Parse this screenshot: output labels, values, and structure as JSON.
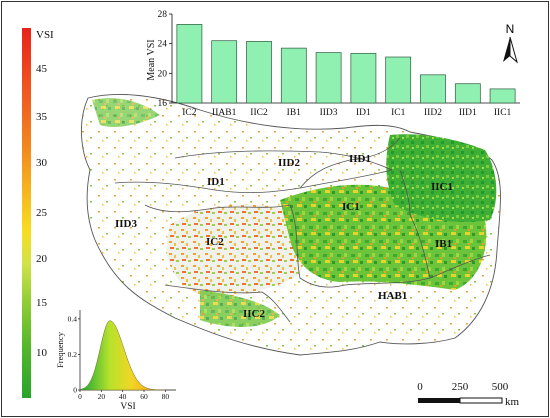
{
  "legend": {
    "title": "VSI",
    "ticks": [
      "45",
      "35",
      "30",
      "25",
      "20",
      "15",
      "10"
    ],
    "colors": [
      "#e8221c",
      "#f05a1e",
      "#f2871e",
      "#f6b51d",
      "#f7de22",
      "#cfe24a",
      "#92cd34",
      "#55b72b",
      "#27a42b"
    ]
  },
  "bar_chart": {
    "type": "bar",
    "ylabel": "Mean VSI",
    "ylim": [
      16,
      28
    ],
    "yticks": [
      "16",
      "20",
      "24",
      "28"
    ],
    "categories": [
      "IC2",
      "IIAB1",
      "IIC2",
      "IB1",
      "IID3",
      "ID1",
      "IC1",
      "IID2",
      "IID1",
      "IIC1"
    ],
    "values": [
      26.6,
      24.4,
      24.3,
      23.4,
      22.8,
      22.7,
      22.2,
      19.8,
      18.6,
      17.9
    ],
    "bar_color": "#8ff0b2"
  },
  "histogram": {
    "xlabel": "VSI",
    "ylabel": "Frequency",
    "xticks": [
      "0",
      "20",
      "40",
      "60",
      "80"
    ],
    "yticks": [
      "0.4",
      "0.2",
      "0"
    ],
    "xlim": [
      0,
      90
    ],
    "ylim": [
      0,
      0.45
    ],
    "peak_x": 28,
    "peak_y": 0.39
  },
  "regions": [
    {
      "name": "IID1",
      "label": "IID1"
    },
    {
      "name": "IID2",
      "label": "IID2"
    },
    {
      "name": "IIC1",
      "label": "IIC1"
    },
    {
      "name": "ID1",
      "label": "ID1"
    },
    {
      "name": "IC1",
      "label": "IC1"
    },
    {
      "name": "IID3",
      "label": "IID3"
    },
    {
      "name": "IC2",
      "label": "IC2"
    },
    {
      "name": "IB1",
      "label": "IB1"
    },
    {
      "name": "HAB1",
      "label": "HAB1"
    },
    {
      "name": "IIC2",
      "label": "IIC2"
    }
  ],
  "north_arrow": {
    "label": "N"
  },
  "scale_bar": {
    "ticks": [
      "0",
      "250",
      "500"
    ],
    "unit": "km"
  }
}
